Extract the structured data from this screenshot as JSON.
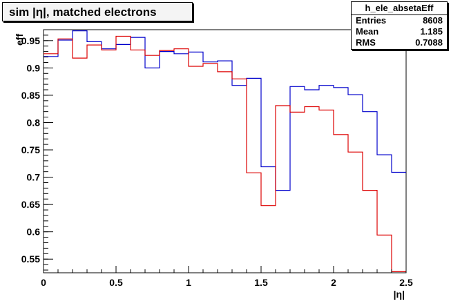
{
  "header": {
    "title": "sim |η|, matched electrons"
  },
  "stats": {
    "name": "h_ele_absetaEff",
    "rows": [
      {
        "label": "Entries",
        "value": "8608"
      },
      {
        "label": "Mean",
        "value": "1.185"
      },
      {
        "label": "RMS",
        "value": "0.7088"
      }
    ]
  },
  "chart_data": {
    "type": "line",
    "title": "sim |η|, matched electrons",
    "xlabel": "|η|",
    "ylabel": "eff",
    "xlim": [
      0,
      2.5
    ],
    "ylim": [
      0.525,
      0.97
    ],
    "grid": false,
    "step": true,
    "bin_edges": [
      0,
      0.1,
      0.2,
      0.3,
      0.4,
      0.5,
      0.6,
      0.7,
      0.8,
      0.9,
      1.0,
      1.1,
      1.2,
      1.3,
      1.4,
      1.5,
      1.6,
      1.7,
      1.8,
      1.9,
      2.0,
      2.1,
      2.2,
      2.3,
      2.4,
      2.5
    ],
    "x_ticks": [
      0,
      0.5,
      1,
      1.5,
      2,
      2.5
    ],
    "x_tick_labels": [
      "0",
      "0.5",
      "1",
      "1.5",
      "2",
      "2.5"
    ],
    "y_ticks": [
      0.55,
      0.6,
      0.65,
      0.7,
      0.75,
      0.8,
      0.85,
      0.9,
      0.95
    ],
    "y_tick_labels": [
      "0.55",
      "0.6",
      "0.65",
      "0.7",
      "0.75",
      "0.8",
      "0.85",
      "0.9",
      "0.95"
    ],
    "series": [
      {
        "color": "#0000cc",
        "values": [
          0.921,
          0.951,
          0.968,
          0.948,
          0.935,
          0.943,
          0.956,
          0.9,
          0.93,
          0.926,
          0.929,
          0.911,
          0.913,
          0.868,
          0.881,
          0.719,
          0.676,
          0.866,
          0.86,
          0.868,
          0.864,
          0.851,
          0.82,
          0.741,
          0.709,
          0.547
        ]
      },
      {
        "color": "#dd0000",
        "values": [
          0.926,
          0.953,
          0.918,
          0.942,
          0.933,
          0.958,
          0.933,
          0.923,
          0.932,
          0.935,
          0.903,
          0.908,
          0.893,
          0.88,
          0.708,
          0.648,
          0.831,
          0.819,
          0.829,
          0.823,
          0.778,
          0.746,
          0.676,
          0.594,
          0.527,
          0.527
        ]
      }
    ]
  },
  "colors": {
    "frame": "#000000",
    "background": "#ffffff",
    "title_box": "#f4f4f4"
  }
}
